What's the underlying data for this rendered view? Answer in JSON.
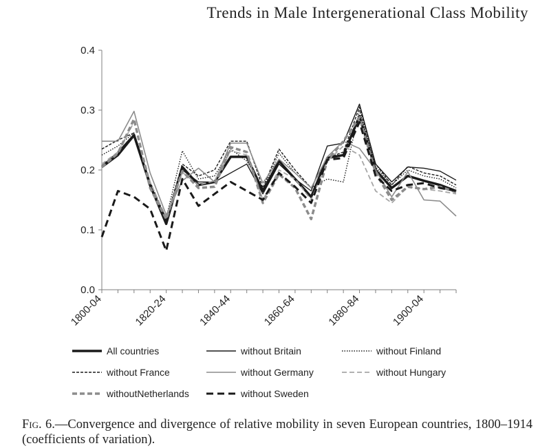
{
  "running_head": "Trends in Male Intergenerational Class Mobility",
  "caption": {
    "lead": "Fig. 6.",
    "text": "—Convergence and divergence of relative mobility in seven European countries, 1800–1914 (coefficients of variation)."
  },
  "chart_data": {
    "type": "line",
    "title": "",
    "xlabel": "",
    "ylabel": "",
    "ylim": [
      0,
      0.4
    ],
    "yticks": [
      "0.0",
      "0.1",
      "0.2",
      "0.3",
      "0.4"
    ],
    "x": [
      "1800-04",
      "1805-09",
      "1810-14",
      "1815-19",
      "1820-24",
      "1825-29",
      "1830-34",
      "1835-39",
      "1840-44",
      "1845-49",
      "1850-54",
      "1855-59",
      "1860-64",
      "1865-69",
      "1870-74",
      "1875-79",
      "1880-84",
      "1885-89",
      "1890-94",
      "1895-99",
      "1900-04",
      "1905-09",
      "1910-14"
    ],
    "xtick_labels": [
      "1800-04",
      "1820-24",
      "1840-44",
      "1860-64",
      "1880-84",
      "1900-04"
    ],
    "legend_position": "bottom",
    "series": [
      {
        "name": "All countries",
        "style": "solid",
        "color": "#1a1a1a",
        "width": 3.5,
        "values": [
          0.205,
          0.225,
          0.258,
          0.175,
          0.11,
          0.205,
          0.175,
          0.18,
          0.222,
          0.222,
          0.165,
          0.215,
          0.185,
          0.155,
          0.22,
          0.225,
          0.29,
          0.2,
          0.17,
          0.19,
          0.182,
          0.175,
          0.165
        ]
      },
      {
        "name": "without Britain",
        "style": "solid",
        "color": "#1a1a1a",
        "width": 1.4,
        "values": [
          0.207,
          0.23,
          0.26,
          0.17,
          0.115,
          0.2,
          0.18,
          0.18,
          0.195,
          0.21,
          0.16,
          0.21,
          0.185,
          0.165,
          0.24,
          0.245,
          0.31,
          0.21,
          0.18,
          0.205,
          0.203,
          0.198,
          0.183
        ]
      },
      {
        "name": "without Finland",
        "style": "dotted",
        "color": "#1a1a1a",
        "width": 1.4,
        "values": [
          0.225,
          0.24,
          0.262,
          0.172,
          0.12,
          0.232,
          0.185,
          0.19,
          0.235,
          0.215,
          0.168,
          0.228,
          0.195,
          0.17,
          0.185,
          0.18,
          0.3,
          0.205,
          0.175,
          0.2,
          0.19,
          0.185,
          0.17
        ]
      },
      {
        "name": "without France",
        "style": "dashed-fine",
        "color": "#1a1a1a",
        "width": 1.4,
        "values": [
          0.235,
          0.25,
          0.262,
          0.18,
          0.118,
          0.21,
          0.19,
          0.2,
          0.248,
          0.248,
          0.17,
          0.235,
          0.2,
          0.17,
          0.22,
          0.23,
          0.305,
          0.21,
          0.175,
          0.206,
          0.195,
          0.19,
          0.175
        ]
      },
      {
        "name": "without Germany",
        "style": "solid",
        "color": "#8c8c8c",
        "width": 1.6,
        "values": [
          0.248,
          0.248,
          0.298,
          0.195,
          0.125,
          0.182,
          0.203,
          0.18,
          0.245,
          0.245,
          0.178,
          0.218,
          0.195,
          0.17,
          0.222,
          0.248,
          0.236,
          0.2,
          0.155,
          0.197,
          0.15,
          0.148,
          0.123
        ]
      },
      {
        "name": "without Hungary",
        "style": "dashed-medium",
        "color": "#a6a6a6",
        "width": 1.8,
        "values": [
          0.21,
          0.23,
          0.28,
          0.18,
          0.12,
          0.196,
          0.175,
          0.182,
          0.232,
          0.225,
          0.15,
          0.2,
          0.185,
          0.15,
          0.215,
          0.24,
          0.225,
          0.165,
          0.145,
          0.172,
          0.168,
          0.165,
          0.16
        ]
      },
      {
        "name": "withoutNetherlands",
        "style": "dashed-medium",
        "color": "#8c8c8c",
        "width": 3.5,
        "values": [
          0.205,
          0.228,
          0.285,
          0.17,
          0.118,
          0.198,
          0.17,
          0.172,
          0.238,
          0.23,
          0.145,
          0.193,
          0.17,
          0.118,
          0.216,
          0.248,
          0.288,
          0.195,
          0.15,
          0.172,
          0.168,
          0.172,
          0.163
        ]
      },
      {
        "name": "without Sweden",
        "style": "dashed-long",
        "color": "#1a1a1a",
        "width": 3,
        "values": [
          0.088,
          0.165,
          0.155,
          0.135,
          0.065,
          0.185,
          0.14,
          0.16,
          0.18,
          0.165,
          0.15,
          0.195,
          0.172,
          0.145,
          0.217,
          0.22,
          0.28,
          0.19,
          0.165,
          0.175,
          0.178,
          0.17,
          0.165
        ]
      }
    ]
  }
}
